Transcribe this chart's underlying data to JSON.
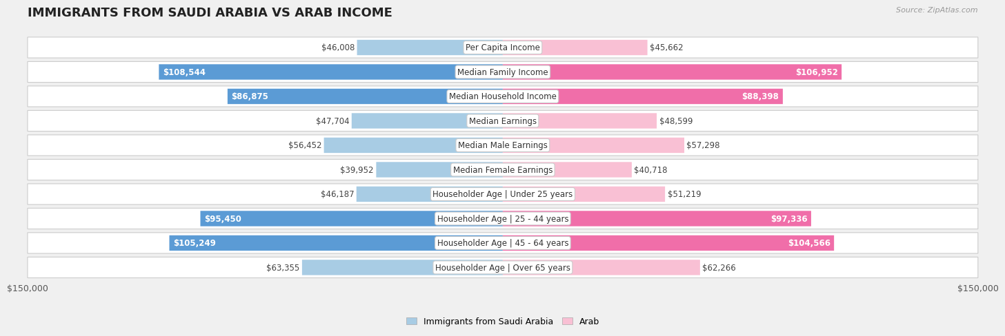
{
  "title": "IMMIGRANTS FROM SAUDI ARABIA VS ARAB INCOME",
  "source": "Source: ZipAtlas.com",
  "categories": [
    "Per Capita Income",
    "Median Family Income",
    "Median Household Income",
    "Median Earnings",
    "Median Male Earnings",
    "Median Female Earnings",
    "Householder Age | Under 25 years",
    "Householder Age | 25 - 44 years",
    "Householder Age | 45 - 64 years",
    "Householder Age | Over 65 years"
  ],
  "left_values": [
    46008,
    108544,
    86875,
    47704,
    56452,
    39952,
    46187,
    95450,
    105249,
    63355
  ],
  "right_values": [
    45662,
    106952,
    88398,
    48599,
    57298,
    40718,
    51219,
    97336,
    104566,
    62266
  ],
  "left_labels": [
    "$46,008",
    "$108,544",
    "$86,875",
    "$47,704",
    "$56,452",
    "$39,952",
    "$46,187",
    "$95,450",
    "$105,249",
    "$63,355"
  ],
  "right_labels": [
    "$45,662",
    "$106,952",
    "$88,398",
    "$48,599",
    "$57,298",
    "$40,718",
    "$51,219",
    "$97,336",
    "$104,566",
    "$62,266"
  ],
  "left_color_light": "#a8cce4",
  "left_color_dark": "#5b9bd5",
  "right_color_light": "#f9c0d4",
  "right_color_dark": "#f06ea9",
  "background_color": "#f0f0f0",
  "row_bg_color": "#ffffff",
  "max_value": 150000,
  "xlabel_left": "$150,000",
  "xlabel_right": "$150,000",
  "legend_left": "Immigrants from Saudi Arabia",
  "legend_right": "Arab",
  "title_fontsize": 13,
  "label_fontsize": 8.5,
  "inside_label_threshold": 65000
}
